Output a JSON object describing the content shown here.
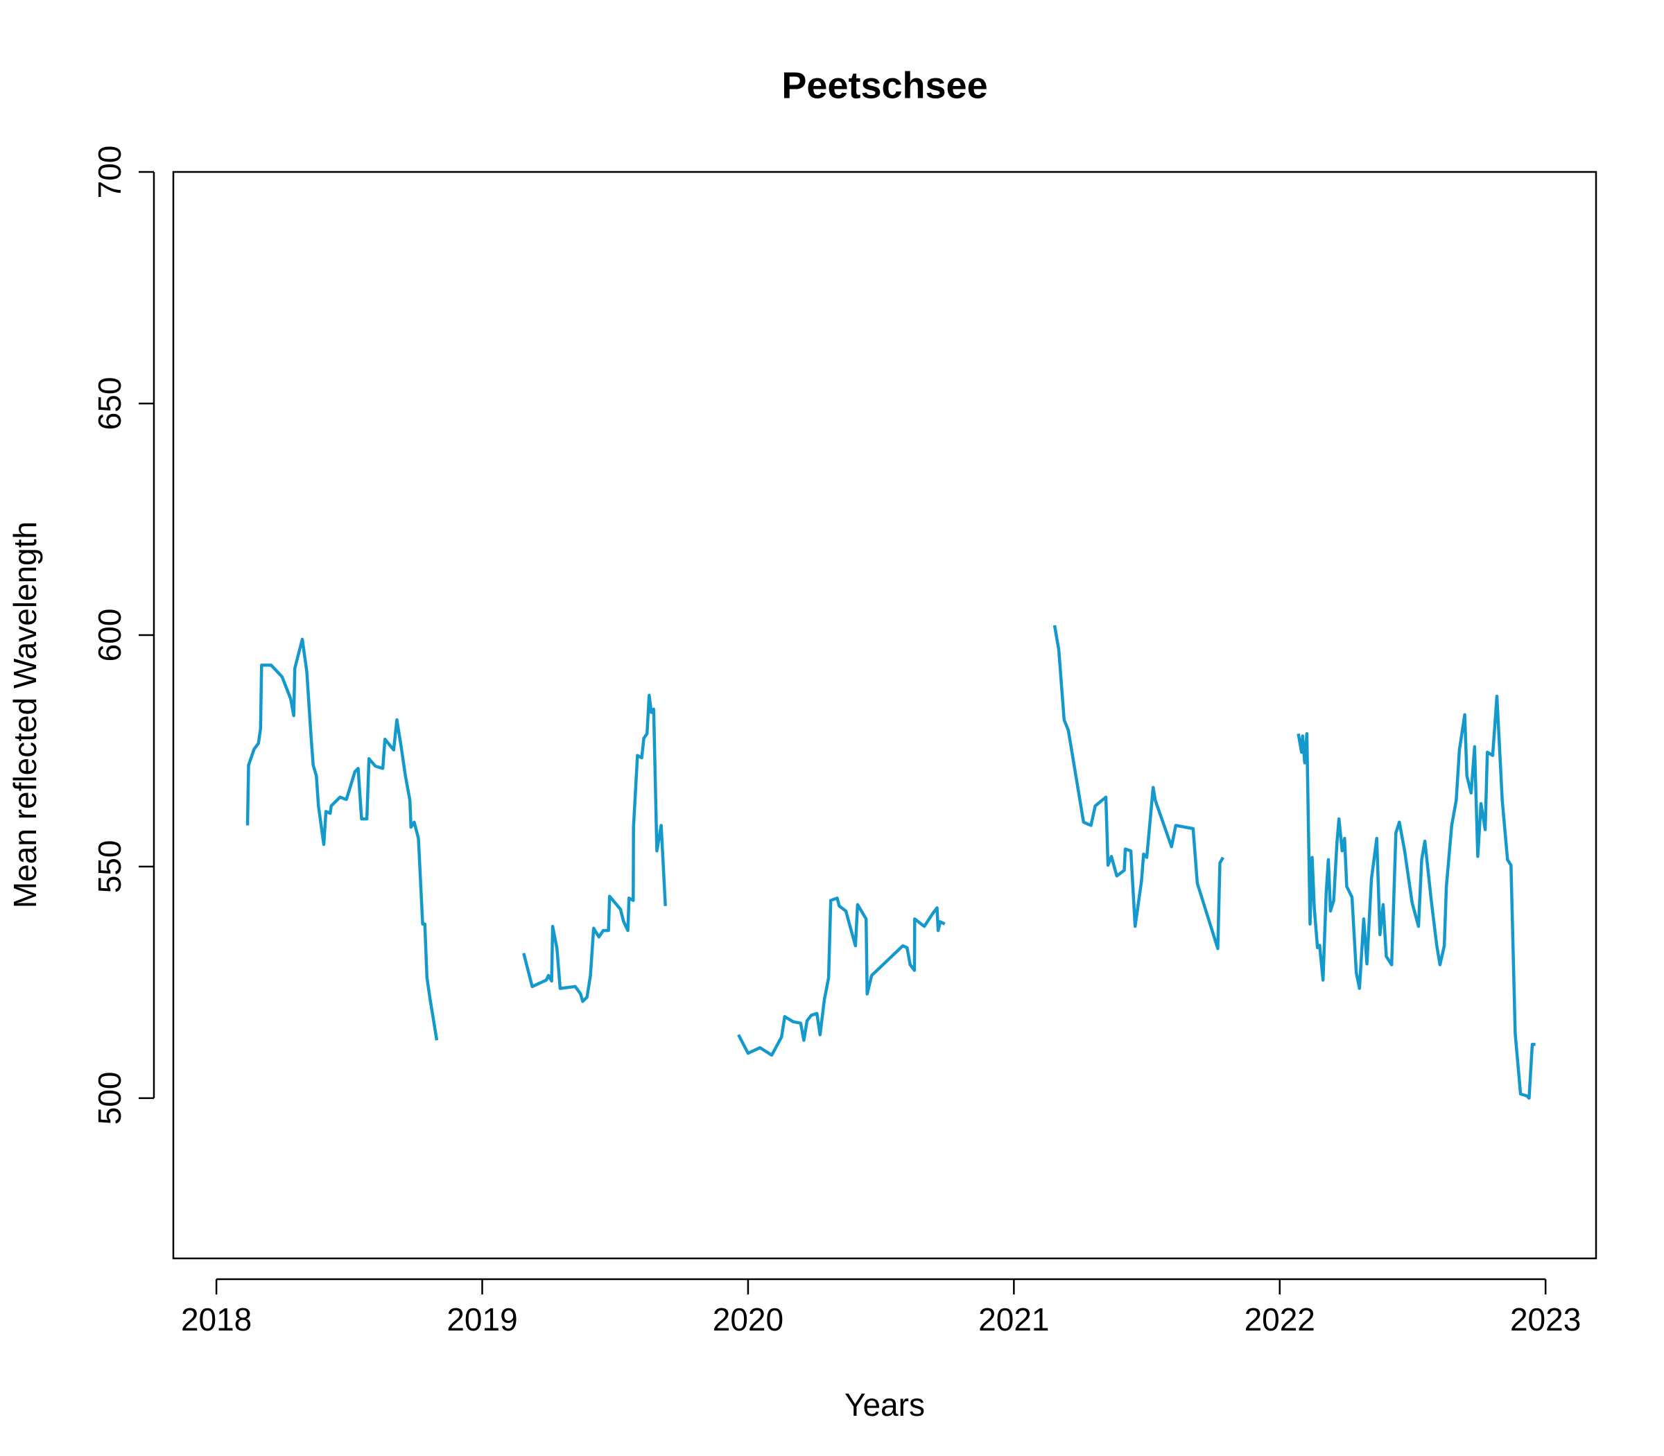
{
  "chart_data": {
    "type": "line",
    "title": "Peetschsee",
    "xlabel": "Years",
    "ylabel": "Mean reflected Wavelength",
    "color": "#1499cc",
    "xlim": [
      2017.838,
      2023.19
    ],
    "xticks": [
      2018,
      2019,
      2020,
      2021,
      2022,
      2023
    ],
    "ylim": [
      465.4,
      700
    ],
    "yticks": [
      500,
      550,
      600,
      650,
      700
    ],
    "x": [
      2018.117,
      2018.121,
      2018.142,
      2018.158,
      2018.166,
      2018.17,
      2018.206,
      2018.247,
      2018.279,
      2018.291,
      2018.295,
      2018.323,
      2018.34,
      2018.356,
      2018.364,
      2018.376,
      2018.384,
      2018.404,
      2018.412,
      2018.428,
      2018.432,
      2018.465,
      2018.489,
      2018.521,
      2018.533,
      2018.546,
      2018.566,
      2018.574,
      2018.598,
      2018.626,
      2018.634,
      2018.667,
      2018.679,
      2018.695,
      2018.711,
      2018.728,
      2018.732,
      2018.744,
      2018.76,
      2018.776,
      2018.784,
      2018.792,
      2018.804,
      2018.829,
      null,
      2019.156,
      2019.188,
      2019.241,
      2019.249,
      2019.261,
      2019.265,
      2019.281,
      2019.293,
      2019.35,
      2019.37,
      2019.378,
      2019.394,
      2019.407,
      2019.419,
      2019.439,
      2019.455,
      2019.475,
      2019.479,
      2019.52,
      2019.532,
      2019.548,
      2019.552,
      2019.568,
      2019.569,
      2019.584,
      2019.6,
      2019.608,
      2019.62,
      2019.628,
      2019.636,
      2019.645,
      2019.657,
      2019.673,
      2019.689,
      null,
      2019.964,
      2020.0,
      2020.045,
      2020.089,
      2020.126,
      2020.138,
      2020.17,
      2020.198,
      2020.21,
      2020.222,
      2020.238,
      2020.259,
      2020.271,
      2020.287,
      2020.303,
      2020.311,
      2020.335,
      2020.343,
      2020.368,
      2020.404,
      2020.412,
      2020.444,
      2020.448,
      2020.465,
      2020.582,
      2020.598,
      2020.61,
      2020.626,
      2020.627,
      2020.663,
      2020.695,
      2020.711,
      2020.715,
      2020.723,
      2020.74,
      null,
      2021.153,
      2021.169,
      2021.189,
      2021.205,
      2021.262,
      2021.29,
      2021.306,
      2021.346,
      2021.354,
      2021.367,
      2021.387,
      2021.415,
      2021.419,
      2021.44,
      2021.456,
      2021.48,
      2021.488,
      2021.5,
      2021.524,
      2021.532,
      2021.593,
      2021.609,
      2021.674,
      2021.69,
      2021.767,
      2021.775,
      2021.787,
      null,
      2022.07,
      2022.082,
      2022.086,
      2022.094,
      2022.102,
      2022.114,
      2022.122,
      2022.13,
      2022.142,
      2022.15,
      2022.163,
      2022.175,
      2022.183,
      2022.191,
      2022.203,
      2022.215,
      2022.223,
      2022.235,
      2022.244,
      2022.252,
      2022.272,
      2022.288,
      2022.3,
      2022.316,
      2022.328,
      2022.345,
      2022.365,
      2022.377,
      2022.389,
      2022.401,
      2022.421,
      2022.437,
      2022.45,
      2022.47,
      2022.498,
      2022.522,
      2022.534,
      2022.546,
      2022.571,
      2022.591,
      2022.603,
      2022.619,
      2022.627,
      2022.647,
      2022.664,
      2022.676,
      2022.696,
      2022.704,
      2022.72,
      2022.733,
      2022.745,
      2022.757,
      2022.773,
      2022.781,
      2022.801,
      2022.817,
      2022.837,
      2022.857,
      2022.87,
      2022.886,
      2022.906,
      2022.93,
      2022.938,
      2022.95,
      2022.962
    ],
    "values": [
      558.9,
      571.9,
      575.4,
      576.6,
      579.8,
      593.5,
      593.5,
      591,
      586.3,
      582.6,
      592.8,
      599.1,
      592.1,
      578.2,
      571.9,
      569.6,
      563.1,
      554.8,
      561.9,
      561.5,
      563.1,
      565,
      564.5,
      570.5,
      571.2,
      560.3,
      560.3,
      573.3,
      571.7,
      571.2,
      577.5,
      575.2,
      581.7,
      575.9,
      569.6,
      564.3,
      558.5,
      559.6,
      556.1,
      537.6,
      537.6,
      526,
      521.3,
      512.5,
      null,
      531.3,
      524.1,
      525.5,
      526.5,
      525.3,
      537.1,
      532.3,
      523.7,
      524.1,
      522.5,
      520.9,
      521.8,
      526.5,
      536.7,
      534.8,
      536.2,
      536.2,
      543.6,
      540.8,
      538.1,
      536.2,
      543.2,
      542.7,
      558.5,
      574,
      573.5,
      577.7,
      578.7,
      587,
      583.3,
      584,
      553.4,
      558.9,
      541.5,
      null,
      513.7,
      509.7,
      510.9,
      509.3,
      513.2,
      517.6,
      516.5,
      516.2,
      512.5,
      516.7,
      517.9,
      518.3,
      513.7,
      521.3,
      526,
      542.7,
      543.2,
      541.5,
      540.4,
      532.9,
      541.8,
      538.7,
      522.5,
      526.5,
      532.9,
      532.5,
      528.8,
      527.6,
      538.7,
      537.1,
      539.9,
      541.1,
      536.2,
      538.1,
      537.6,
      null,
      602.1,
      596.8,
      581.7,
      579.4,
      559.6,
      558.9,
      563.1,
      565,
      550.3,
      552.2,
      548,
      549.2,
      553.8,
      553.4,
      537.1,
      546.9,
      552.7,
      552,
      567.1,
      564.3,
      554.3,
      558.9,
      558.2,
      546.4,
      532.3,
      550.8,
      552,
      null,
      578.7,
      574.7,
      578.2,
      572.4,
      578.7,
      537.6,
      552,
      541.1,
      532.5,
      533,
      525.5,
      544.5,
      551.5,
      540.4,
      542.7,
      555,
      560.3,
      553.4,
      556.1,
      545.7,
      543.4,
      527.1,
      523.7,
      538.7,
      529,
      547.3,
      556.1,
      535.3,
      541.8,
      530.6,
      528.8,
      557.3,
      559.6,
      553.4,
      542.2,
      537.1,
      551.5,
      555.5,
      542.2,
      532.9,
      528.8,
      532.9,
      545.7,
      558.9,
      564.3,
      575.2,
      582.8,
      569.6,
      565.9,
      575.9,
      552.2,
      563.6,
      558,
      574.7,
      574,
      586.8,
      564.3,
      551.5,
      550.3,
      513.9,
      500.9,
      500.5,
      500,
      511.6,
      511.6
    ]
  }
}
